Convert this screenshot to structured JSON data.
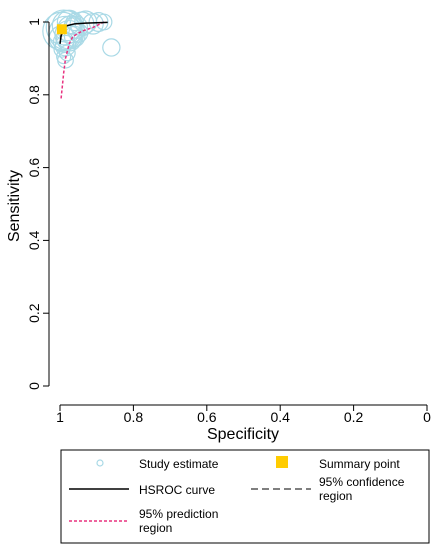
{
  "chart_data": {
    "type": "scatter",
    "title": "",
    "xlabel": "Specificity",
    "ylabel": "Sensitivity",
    "xlim": [
      1,
      0
    ],
    "ylim": [
      0,
      1
    ],
    "x_reversed": true,
    "xticks": [
      "1",
      "0.8",
      "0.6",
      "0.4",
      "0.2",
      "0"
    ],
    "yticks": [
      "0",
      "0.2",
      "0.4",
      "0.6",
      "0.8",
      "1"
    ],
    "grid": false,
    "legend_position": "bottom",
    "studies": [
      {
        "spec": 0.995,
        "sens": 0.975,
        "weight": 1.0
      },
      {
        "spec": 0.99,
        "sens": 0.985,
        "weight": 0.9
      },
      {
        "spec": 0.985,
        "sens": 0.97,
        "weight": 0.85
      },
      {
        "spec": 0.98,
        "sens": 0.99,
        "weight": 0.75
      },
      {
        "spec": 0.975,
        "sens": 0.965,
        "weight": 0.7
      },
      {
        "spec": 0.97,
        "sens": 0.98,
        "weight": 0.65
      },
      {
        "spec": 0.995,
        "sens": 0.955,
        "weight": 0.6
      },
      {
        "spec": 0.99,
        "sens": 0.945,
        "weight": 0.45
      },
      {
        "spec": 0.975,
        "sens": 1.0,
        "weight": 0.55
      },
      {
        "spec": 0.955,
        "sens": 0.985,
        "weight": 0.5
      },
      {
        "spec": 0.94,
        "sens": 0.995,
        "weight": 0.55
      },
      {
        "spec": 0.93,
        "sens": 1.0,
        "weight": 0.5
      },
      {
        "spec": 0.91,
        "sens": 0.995,
        "weight": 0.45
      },
      {
        "spec": 0.895,
        "sens": 1.0,
        "weight": 0.4
      },
      {
        "spec": 0.96,
        "sens": 0.96,
        "weight": 0.45
      },
      {
        "spec": 0.95,
        "sens": 0.97,
        "weight": 0.4
      },
      {
        "spec": 0.985,
        "sens": 0.935,
        "weight": 0.45
      },
      {
        "spec": 0.995,
        "sens": 0.925,
        "weight": 0.3
      },
      {
        "spec": 0.98,
        "sens": 0.915,
        "weight": 0.3
      },
      {
        "spec": 0.99,
        "sens": 0.905,
        "weight": 0.25
      },
      {
        "spec": 0.985,
        "sens": 0.895,
        "weight": 0.3
      },
      {
        "spec": 0.975,
        "sens": 0.955,
        "weight": 0.6
      },
      {
        "spec": 0.965,
        "sens": 0.99,
        "weight": 0.35
      },
      {
        "spec": 0.96,
        "sens": 1.0,
        "weight": 0.35
      },
      {
        "spec": 0.86,
        "sens": 0.93,
        "weight": 0.35
      },
      {
        "spec": 0.88,
        "sens": 1.0,
        "weight": 0.3
      }
    ],
    "summary_point": {
      "spec": 0.995,
      "sens": 0.98
    },
    "hsroc_curve": [
      [
        1.0,
        0.94
      ],
      [
        0.998,
        0.955
      ],
      [
        0.995,
        0.975
      ],
      [
        0.99,
        0.985
      ],
      [
        0.98,
        0.99
      ],
      [
        0.96,
        0.995
      ],
      [
        0.93,
        0.997
      ],
      [
        0.9,
        0.998
      ],
      [
        0.87,
        0.999
      ]
    ],
    "confidence_region": [
      [
        0.998,
        0.96
      ],
      [
        0.995,
        0.965
      ],
      [
        0.99,
        0.975
      ],
      [
        0.988,
        0.985
      ],
      [
        0.99,
        0.99
      ],
      [
        0.995,
        0.99
      ],
      [
        0.998,
        0.985
      ],
      [
        1.0,
        0.975
      ],
      [
        0.998,
        0.96
      ]
    ],
    "prediction_region": [
      [
        0.997,
        0.79
      ],
      [
        0.994,
        0.82
      ],
      [
        0.99,
        0.86
      ],
      [
        0.985,
        0.9
      ],
      [
        0.975,
        0.94
      ],
      [
        0.965,
        0.96
      ],
      [
        0.94,
        0.975
      ],
      [
        0.91,
        0.985
      ],
      [
        0.89,
        0.995
      ],
      [
        0.88,
        1.0
      ]
    ],
    "legend": [
      {
        "key": "study_estimate",
        "label": "Study estimate"
      },
      {
        "key": "summary_point",
        "label": "Summary point"
      },
      {
        "key": "hsroc_curve",
        "label": "HSROC curve"
      },
      {
        "key": "confidence_region",
        "label_lines": [
          "95% confidence",
          "region"
        ]
      },
      {
        "key": "prediction_region",
        "label_lines": [
          "95% prediction",
          "region"
        ]
      }
    ],
    "colors": {
      "study": "#a9d9e6",
      "summary": "#ffcc00",
      "hsroc": "#000000",
      "confidence": "#333333",
      "prediction": "#e8317f",
      "axis": "#000000"
    }
  }
}
